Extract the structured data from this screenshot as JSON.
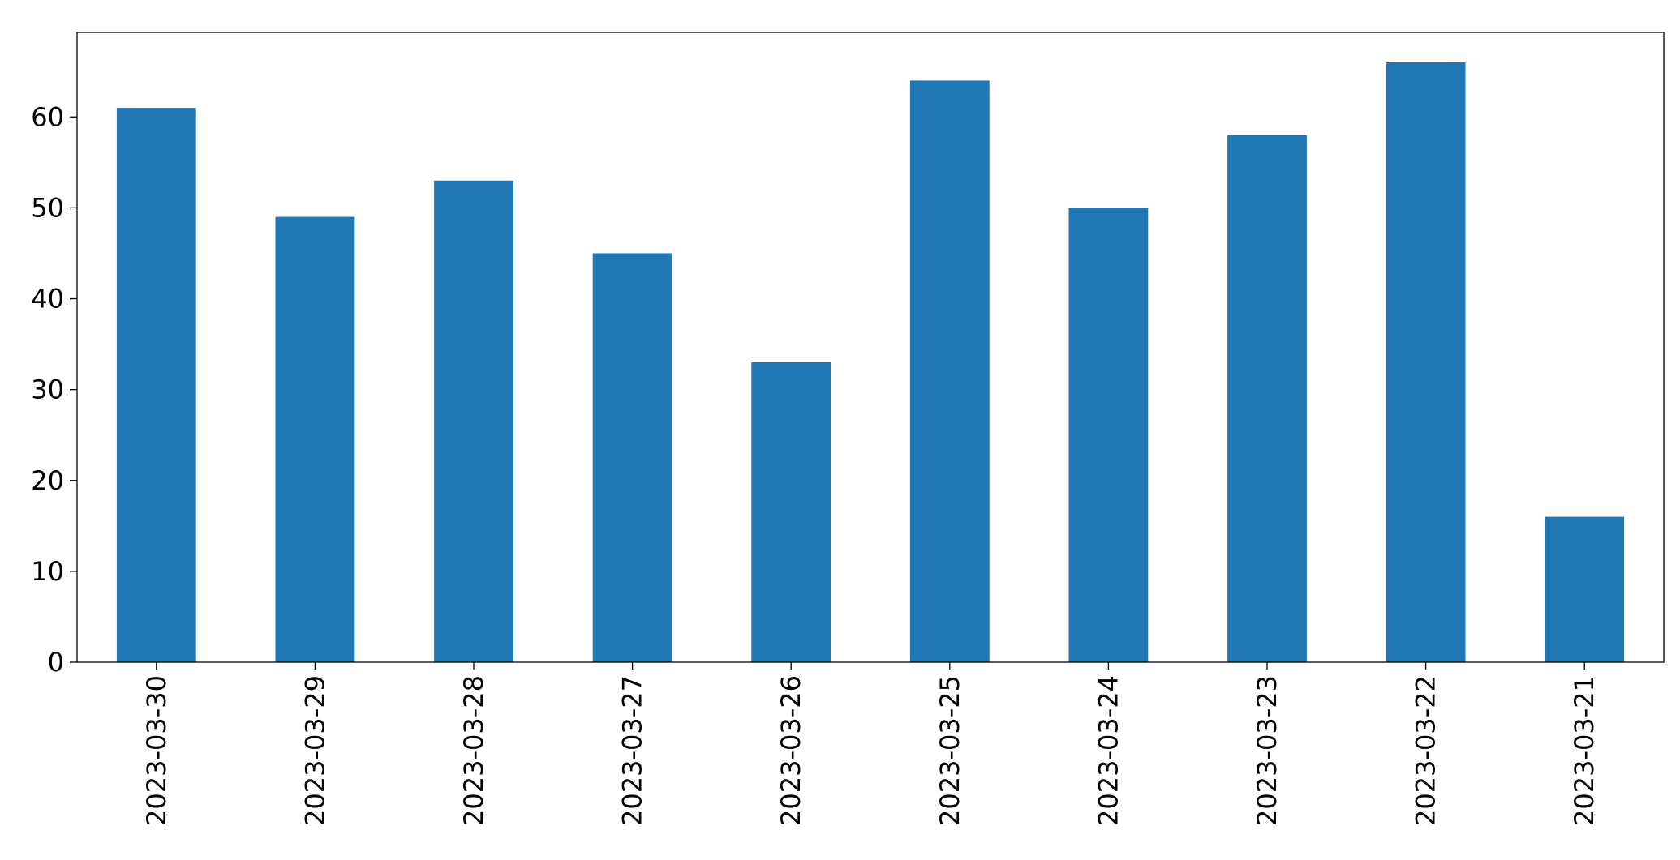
{
  "chart_data": {
    "type": "bar",
    "categories": [
      "2023-03-30",
      "2023-03-29",
      "2023-03-28",
      "2023-03-27",
      "2023-03-26",
      "2023-03-25",
      "2023-03-24",
      "2023-03-23",
      "2023-03-22",
      "2023-03-21"
    ],
    "values": [
      61,
      49,
      53,
      45,
      33,
      64,
      50,
      58,
      66,
      16
    ],
    "color": "#1f77b4",
    "ylim": [
      0,
      69.3
    ],
    "yticks": [
      0,
      10,
      20,
      30,
      40,
      50,
      60
    ],
    "grid": false
  }
}
